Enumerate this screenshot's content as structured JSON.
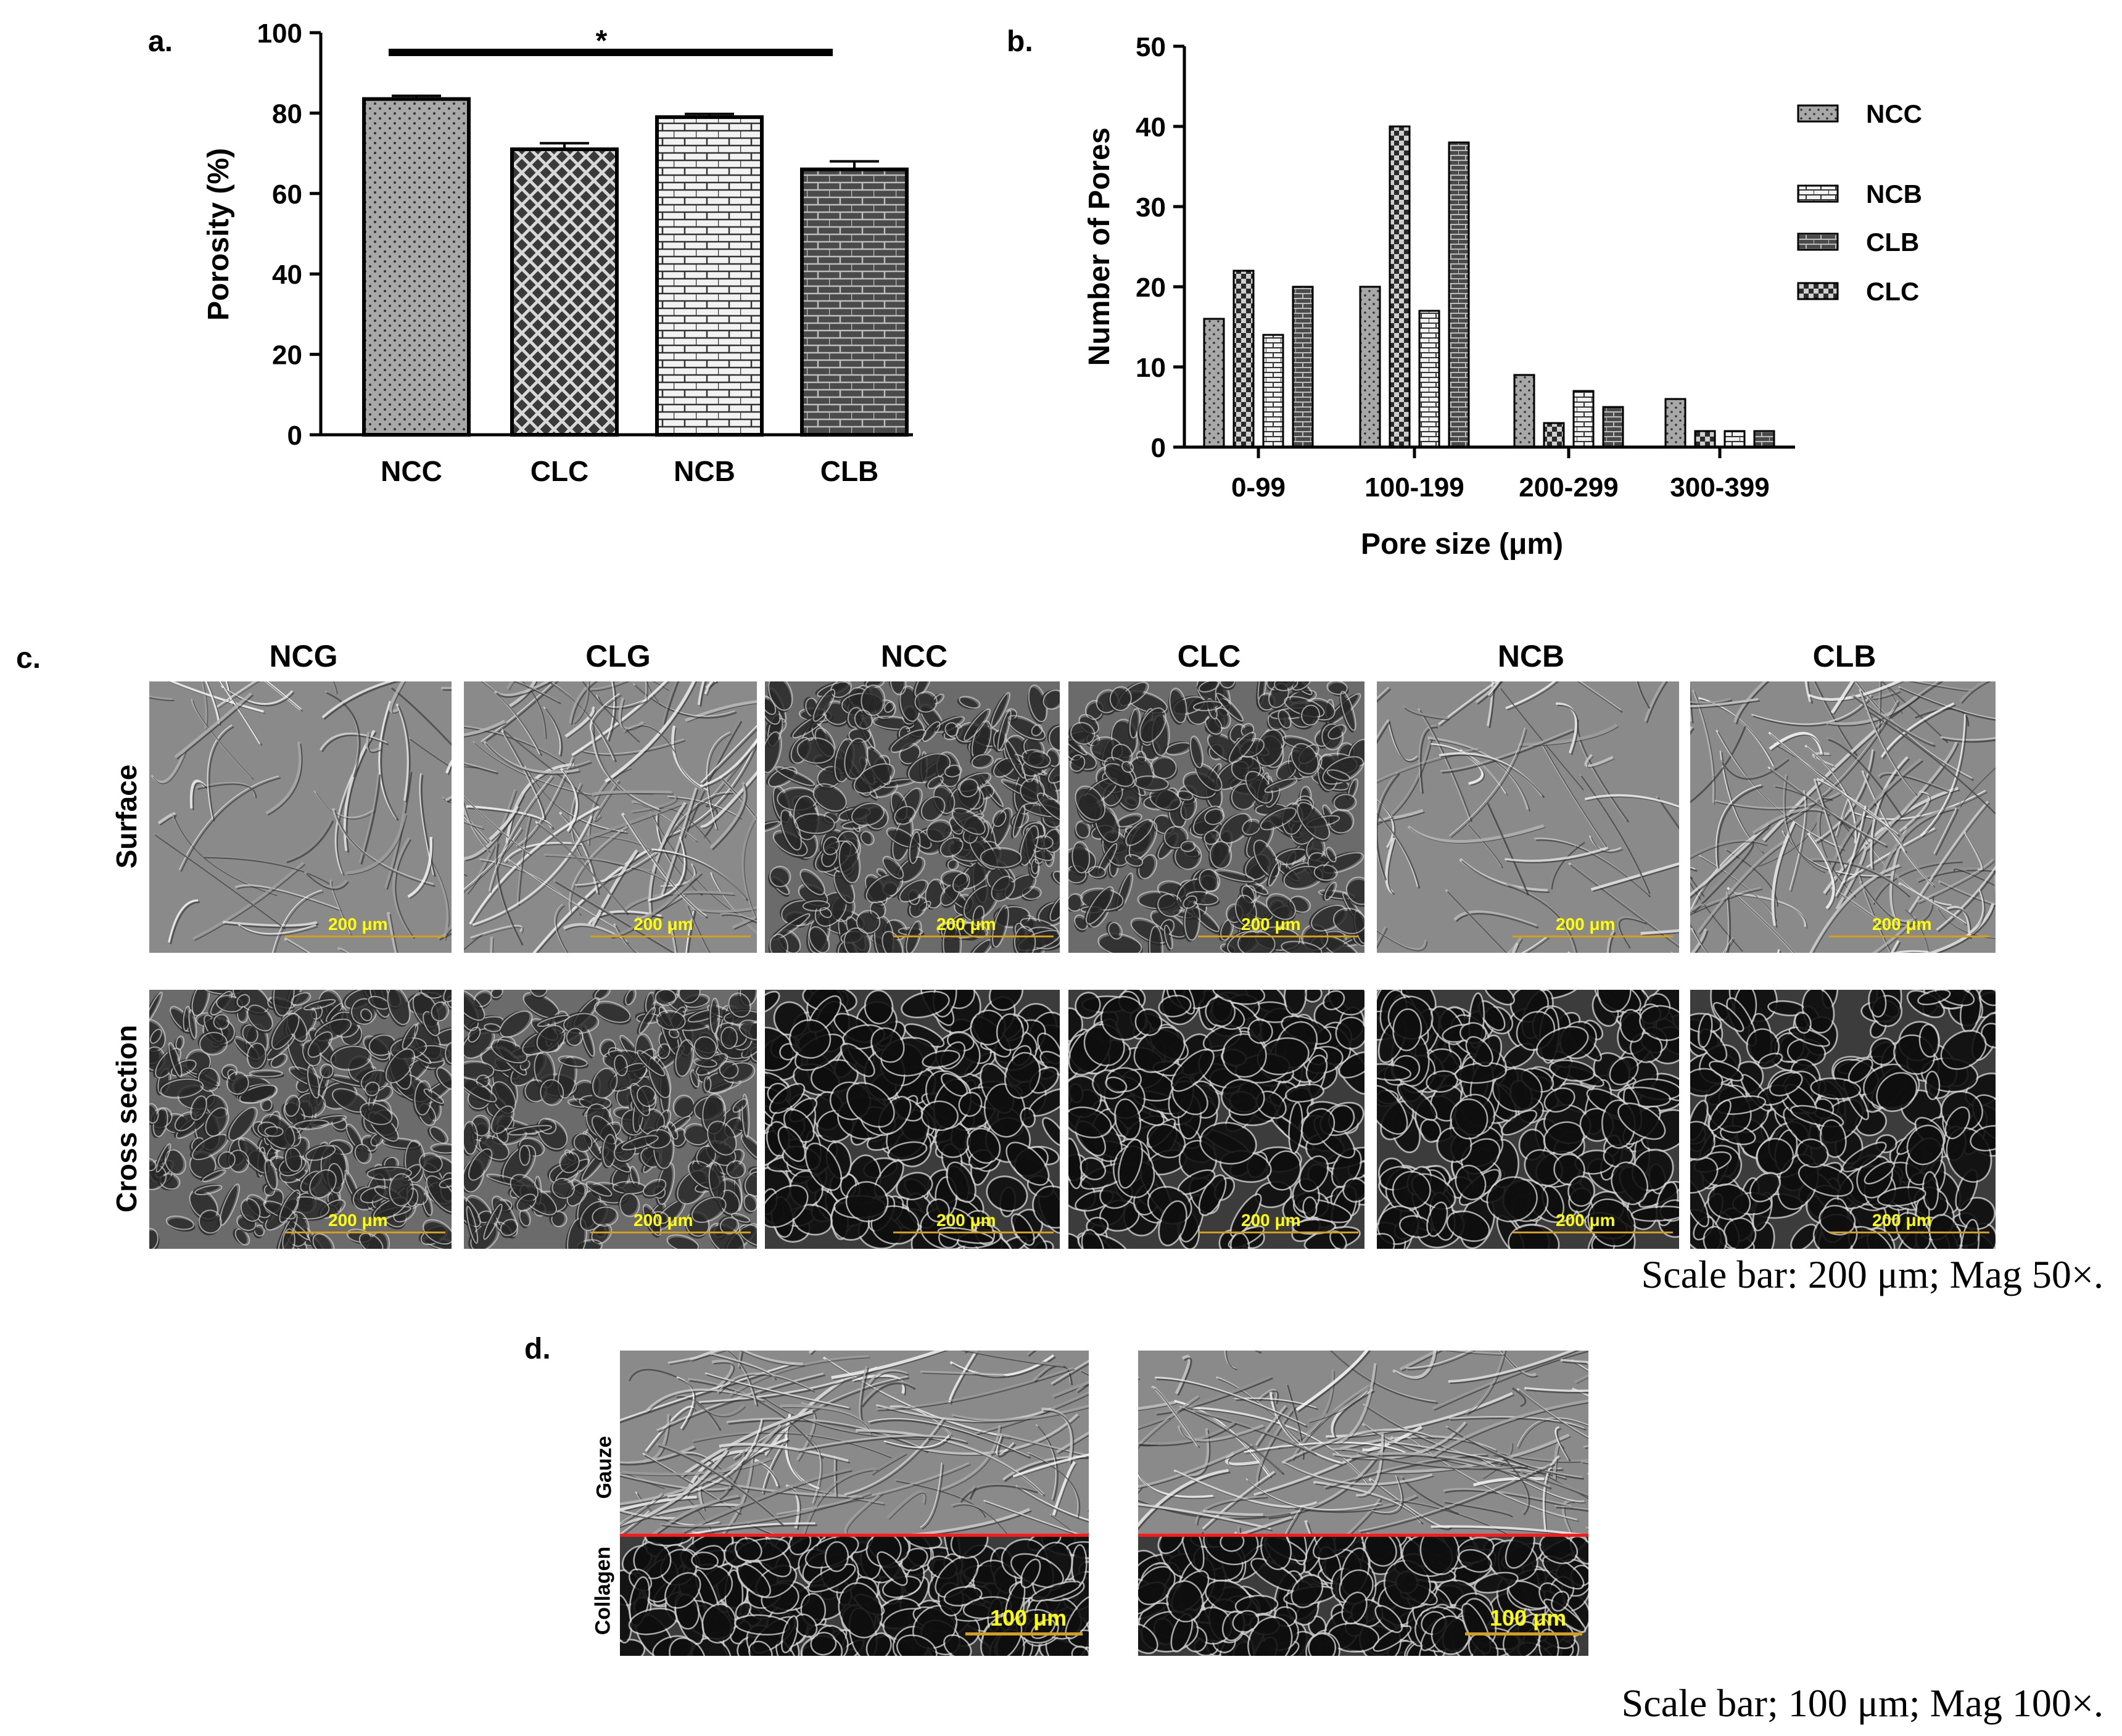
{
  "panel_labels": {
    "a": "a.",
    "b": "b.",
    "c": "c.",
    "d": "d."
  },
  "chart_data": [
    {
      "type": "bar",
      "categories": [
        "NCC",
        "CLC",
        "NCB",
        "CLB"
      ],
      "values": [
        83.5,
        71.0,
        79.0,
        66.0
      ],
      "errors": [
        0.8,
        1.5,
        0.8,
        2.0
      ],
      "patterns": [
        "dots",
        "crosshatch",
        "bricks-light",
        "bricks-dark"
      ],
      "ylabel": "Porosity (%)",
      "xlabel": "",
      "ylim": [
        0,
        100
      ],
      "yticks": [
        0,
        20,
        40,
        60,
        80,
        100
      ],
      "significance": "*",
      "grid": false
    },
    {
      "type": "bar",
      "categories": [
        "0-99",
        "100-199",
        "200-299",
        "300-399"
      ],
      "series": [
        {
          "name": "NCC",
          "values": [
            16,
            20,
            9,
            6
          ],
          "pattern": "dots"
        },
        {
          "name": "CLC",
          "values": [
            22,
            40,
            3,
            2
          ],
          "pattern": "checker"
        },
        {
          "name": "NCB",
          "values": [
            14,
            17,
            7,
            2
          ],
          "pattern": "bricks-light"
        },
        {
          "name": "CLB",
          "values": [
            20,
            38,
            5,
            2
          ],
          "pattern": "bricks-dark"
        }
      ],
      "legend_order": [
        "NCC",
        "NCB",
        "CLB",
        "CLC"
      ],
      "legend_position": "right",
      "xlabel": "Pore size (μm)",
      "ylabel": "Number of Pores",
      "ylim": [
        0,
        50
      ],
      "yticks": [
        0,
        10,
        20,
        30,
        40,
        50
      ],
      "grid": false
    }
  ],
  "sem_grid": {
    "columns": [
      "NCG",
      "CLG",
      "NCC",
      "CLC",
      "NCB",
      "CLB"
    ],
    "rows": [
      "Surface",
      "Cross section"
    ],
    "scale_label": "200 μm"
  },
  "caption_c": "Scale bar: 200 μm; Mag 50×.",
  "panel_d": {
    "label_top": "Gauze",
    "label_bottom": "Collagen",
    "scale_label": "100 μm"
  },
  "caption_d": "Scale bar; 100 μm; Mag 100×.",
  "colors": {
    "scale_text": "#ffff00",
    "scale_line": "#d4a017",
    "interface_line": "#ff1a1a"
  }
}
